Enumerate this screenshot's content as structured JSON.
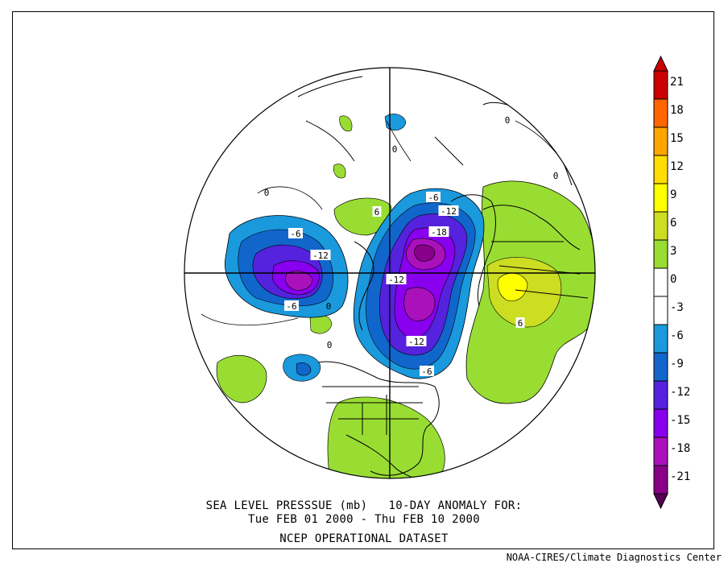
{
  "figure": {
    "title_line1": "SEA LEVEL PRESSSUE (mb)   10-DAY ANOMALY FOR:",
    "title_line2": "Tue FEB 01 2000 - Thu FEB 10 2000",
    "title_line3": "NCEP OPERATIONAL DATASET",
    "credit": "NOAA-CIRES/Climate Diagnostics Center"
  },
  "colorbar": {
    "levels": [
      {
        "label": "21",
        "color": "#cc0000"
      },
      {
        "label": "18",
        "color": "#ff6600"
      },
      {
        "label": "15",
        "color": "#ffa500"
      },
      {
        "label": "12",
        "color": "#ffdd00"
      },
      {
        "label": "9",
        "color": "#ffff00"
      },
      {
        "label": "6",
        "color": "#ccdd22"
      },
      {
        "label": "3",
        "color": "#99dd33"
      },
      {
        "label": "0",
        "color": "#ffffff"
      },
      {
        "label": "-3",
        "color": "#ffffff"
      },
      {
        "label": "-6",
        "color": "#1a99dd"
      },
      {
        "label": "-9",
        "color": "#1166cc"
      },
      {
        "label": "-12",
        "color": "#5522dd"
      },
      {
        "label": "-15",
        "color": "#8800ee"
      },
      {
        "label": "-18",
        "color": "#aa11bb"
      },
      {
        "label": "-21",
        "color": "#880088"
      }
    ],
    "top_cap_color": "#cc0000",
    "bottom_cap_color": "#550055"
  },
  "contour_labels": [
    {
      "text": "-6"
    },
    {
      "text": "-12"
    },
    {
      "text": "-18"
    },
    {
      "text": "-6"
    },
    {
      "text": "-12"
    },
    {
      "text": "-6"
    },
    {
      "text": "-12"
    },
    {
      "text": "-12"
    },
    {
      "text": "-6"
    },
    {
      "text": "6"
    },
    {
      "text": "6"
    },
    {
      "text": "0"
    },
    {
      "text": "0"
    },
    {
      "text": "0"
    },
    {
      "text": "0"
    },
    {
      "text": "0"
    },
    {
      "text": "0"
    }
  ]
}
